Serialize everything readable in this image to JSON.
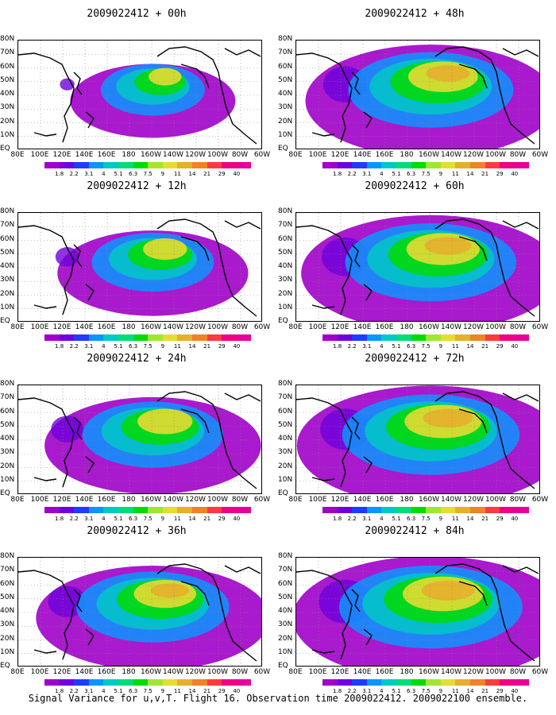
{
  "panels": [
    {
      "title": "2009022412 + 00h",
      "intensity": 0.25
    },
    {
      "title": "2009022412 + 48h",
      "intensity": 0.75
    },
    {
      "title": "2009022412 + 12h",
      "intensity": 0.4
    },
    {
      "title": "2009022412 + 60h",
      "intensity": 0.8
    },
    {
      "title": "2009022412 + 24h",
      "intensity": 0.55
    },
    {
      "title": "2009022412 + 72h",
      "intensity": 0.85
    },
    {
      "title": "2009022412 + 36h",
      "intensity": 0.65
    },
    {
      "title": "2009022412 + 84h",
      "intensity": 0.9
    }
  ],
  "y_axis_labels": [
    "80N",
    "70N",
    "60N",
    "50N",
    "40N",
    "30N",
    "20N",
    "10N",
    "EQ"
  ],
  "x_axis_labels": [
    "80E",
    "100E",
    "120E",
    "140E",
    "160E",
    "180",
    "160W",
    "140W",
    "120W",
    "100W",
    "80W",
    "60W"
  ],
  "colorbar": {
    "labels": [
      "1.8",
      "2.2",
      "3.1",
      "4",
      "5.1",
      "6.3",
      "7.5",
      "9",
      "11",
      "14",
      "21",
      "29",
      "40"
    ],
    "colors": [
      "#a000c8",
      "#6e00dc",
      "#1e3cff",
      "#0a96ff",
      "#00c8c8",
      "#00dc78",
      "#00dc00",
      "#a0e632",
      "#e6dc32",
      "#e6af2d",
      "#f08228",
      "#fa3c3c",
      "#f00082"
    ]
  },
  "footer": "Signal Variance for u,v,T. Flight 16. Observation time 2009022412. 2009022100 ensemble."
}
